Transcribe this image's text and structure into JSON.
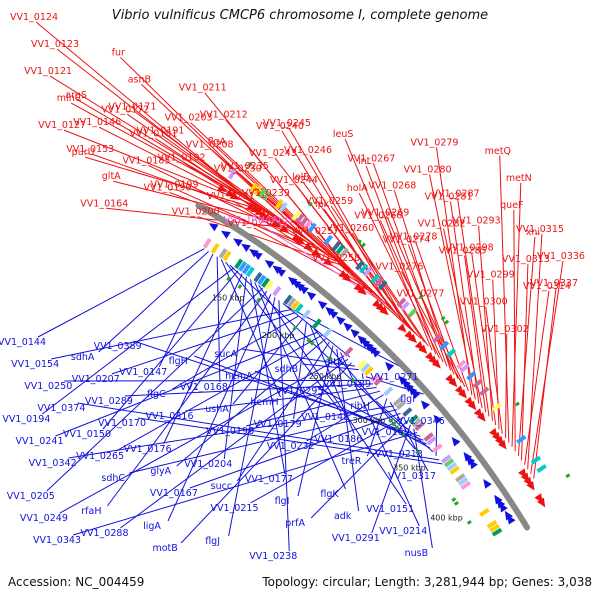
{
  "title": "Vibrio vulnificus CMCP6 chromosome I, complete genome",
  "footer": {
    "accession": "Accession: NC_004459",
    "summary": "Topology: circular; Length: 3,281,944 bp; Genes: 3,038"
  },
  "colors": {
    "forward_strand": "#ee1111",
    "reverse_strand": "#1111dd",
    "trna_label": "#ee66dd",
    "backbone": "#888888",
    "tick_marker": "#22aa22"
  },
  "ruler": [
    "150 kbp",
    "200 kbp",
    "250 kbp",
    "300 kbp",
    "350 kbp",
    "400 kbp"
  ],
  "forward_labels": [
    "VV1_0124",
    "VV1_0123",
    "VV1_0121",
    "minC",
    "VV1_0127",
    "purU",
    "argS",
    "VV1_0146",
    "VV1_0153",
    "gltA",
    "VV1_0164",
    "VV1_0172",
    "fur",
    "asnB",
    "VV1_0171",
    "VV1_0181",
    "VV1_0185",
    "VV1_0190",
    "VV1_0191",
    "VV1_0192",
    "VV1_0199",
    "VV1_0200",
    "VV1_0203",
    "VV1_0208",
    "VV1_0211",
    "VV1_0212",
    "flgA",
    "VV1_0230",
    "VV1_0231",
    "VV1_0234",
    "VV1_0235",
    "VV1_0239",
    "VV1_tRNAArg1",
    "VV1_0240",
    "VV1_0243",
    "VV1_0244",
    "VV1_0245",
    "VV1_0246",
    "lolB",
    "ipk",
    "VV1_0257",
    "VV1_0258",
    "VV1_0259",
    "VV1_0260",
    "leuS",
    "lnt",
    "holA",
    "VV1_0266",
    "VV1_0267",
    "VV1_0268",
    "VV1_0269",
    "VV1_0274",
    "VV1_0276",
    "VV1_0277",
    "VV1_0278",
    "VV1_0279",
    "VV1_0280",
    "VV1_0281",
    "VV1_0282",
    "VV1_0285",
    "VV1_0287",
    "VV1_0293",
    "VV1_0298",
    "VV1_0299",
    "VV1_0300",
    "VV1_0302",
    "metQ",
    "metN",
    "queF",
    "xni",
    "VV1_0313",
    "VV1_0314",
    "VV1_0315",
    "VV1_0336",
    "VV1_0337"
  ],
  "reverse_labels": [
    "VV1_0144",
    "sdhA",
    "VV1_0147",
    "VV1_0168",
    "hemH",
    "VV1_0148",
    "VV1_0169",
    "VV1_0194",
    "VV1_0150",
    "VV1_0176",
    "VV1_0204",
    "VV1_0177",
    "flgK",
    "VV1_0151",
    "VV1_0205",
    "rfaH",
    "ligA",
    "flgJ",
    "VV1_0238",
    "gltX",
    "VV1_0271",
    "VV1_0154",
    "VV1_0207",
    "flgC",
    "ushA",
    "VV1_0179",
    "VV1_0186",
    "VV1_0213",
    "VV1_0241",
    "VV1_0265",
    "glyA",
    "succ",
    "flgI",
    "adk",
    "VV1_0214",
    "VV1_0249",
    "VV1_0288",
    "motB",
    "sucA",
    "sdhB",
    "VV1_0189",
    "flgI",
    "VV1_0250",
    "VV1_0289",
    "VV1_0316",
    "VV1_0196",
    "VV1_0232",
    "treR",
    "VV1_0317",
    "VV1_0342",
    "sdhC",
    "VV1_0167",
    "VV1_0215",
    "prfA",
    "VV1_0291",
    "nusB",
    "VV1_0343",
    "VV1_0389",
    "flgH",
    "hemA",
    "VV1_0295",
    "ribH",
    "VV1_0346",
    "VV1_0374",
    "VV1_0170"
  ]
}
